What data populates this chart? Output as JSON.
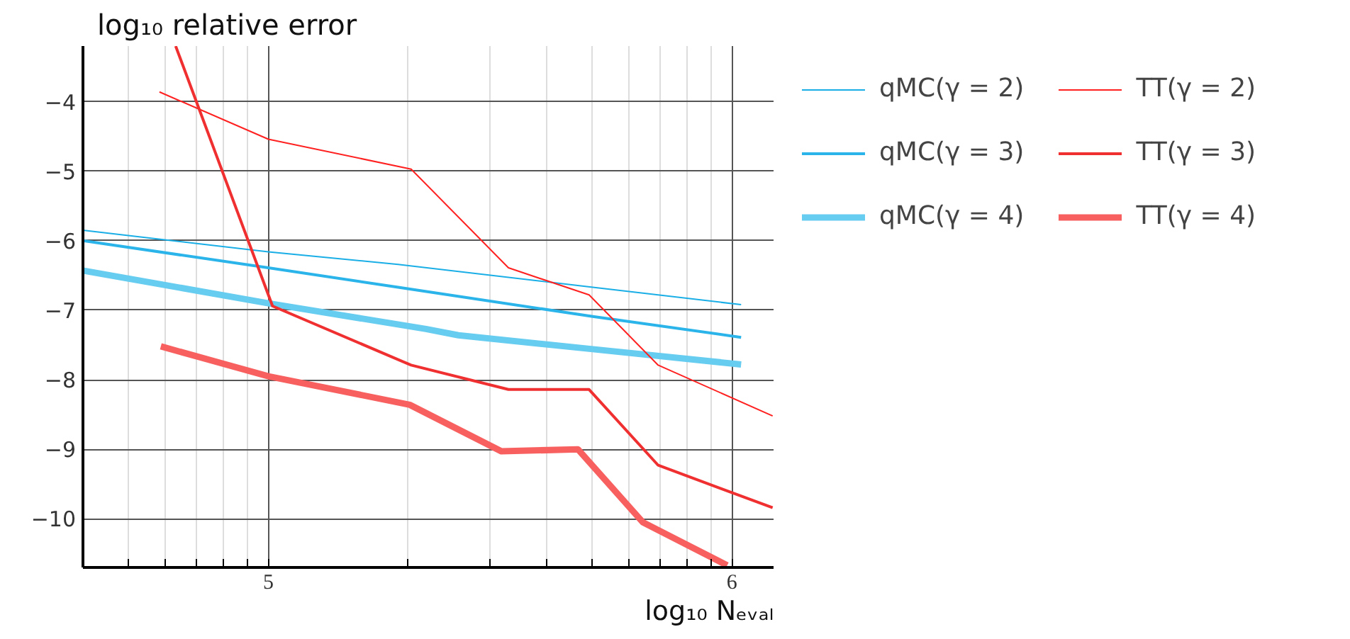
{
  "chart_data": {
    "type": "line",
    "xlabel": "log₁₀ Nₑᵥₐₗ",
    "ylabel": "log₁₀ relative error",
    "xlim": [
      4.6,
      6.09
    ],
    "ylim": [
      -10.7,
      -3.2
    ],
    "xticks": [
      {
        "value": 4.699,
        "label": null
      },
      {
        "value": 4.778,
        "label": null
      },
      {
        "value": 4.845,
        "label": null
      },
      {
        "value": 4.903,
        "label": null
      },
      {
        "value": 4.954,
        "label": null
      },
      5,
      {
        "value": 5.301,
        "label": null
      },
      {
        "value": 5.477,
        "label": null
      },
      {
        "value": 5.602,
        "label": null
      },
      {
        "value": 5.699,
        "label": null
      },
      {
        "value": 5.778,
        "label": null
      },
      {
        "value": 5.845,
        "label": null
      },
      {
        "value": 5.903,
        "label": null
      },
      {
        "value": 5.954,
        "label": null
      },
      6
    ],
    "yticks": [
      {
        "value": -10,
        "label": "−10"
      },
      {
        "value": -9,
        "label": "−9"
      },
      {
        "value": -8,
        "label": "−8"
      },
      {
        "value": -7,
        "label": "−7"
      },
      {
        "value": -6,
        "label": "−6"
      },
      {
        "value": -5,
        "label": "−5"
      },
      {
        "value": -4,
        "label": "−4"
      }
    ],
    "grid": true,
    "legend": "right",
    "line_style": "solid",
    "marker": "none",
    "series": [
      {
        "name": "qMC(γ = 2)",
        "color": "#1aaee6",
        "x": [
          4.6,
          5.0,
          5.28,
          5.7,
          6.02
        ],
        "values": [
          -5.85,
          -6.16,
          -6.34,
          -6.67,
          -6.92
        ]
      },
      {
        "name": "qMC(γ = 3)",
        "color": "#2ab4ea",
        "x": [
          4.6,
          5.0,
          5.28,
          5.7,
          6.02
        ],
        "values": [
          -6.0,
          -6.39,
          -6.67,
          -7.09,
          -7.39
        ]
      },
      {
        "name": "qMC(γ = 4)",
        "color": "#66ccf0",
        "x": [
          4.6,
          5.0,
          5.34,
          5.41,
          5.7,
          6.02
        ],
        "values": [
          -6.43,
          -6.9,
          -7.27,
          -7.36,
          -7.56,
          -7.78
        ]
      },
      {
        "name": "TT(γ = 2)",
        "color": "#ff2020",
        "x": [
          4.765,
          5.0,
          5.308,
          5.518,
          5.692,
          5.841,
          6.088
        ],
        "values": [
          -3.86,
          -4.54,
          -4.97,
          -6.39,
          -6.78,
          -7.79,
          -8.52
        ]
      },
      {
        "name": "TT(γ = 3)",
        "color": "#f03030",
        "x": [
          4.8,
          5.009,
          5.308,
          5.518,
          5.692,
          5.841,
          6.088
        ],
        "values": [
          -3.2,
          -6.94,
          -7.79,
          -8.14,
          -8.14,
          -9.23,
          -9.84
        ]
      },
      {
        "name": "TT(γ = 4)",
        "color": "#f86060",
        "x": [
          4.768,
          5.0,
          5.305,
          5.503,
          5.668,
          5.808,
          5.99
        ],
        "values": [
          -7.52,
          -7.95,
          -8.36,
          -9.03,
          -9.0,
          -10.05,
          -10.67
        ]
      }
    ]
  }
}
